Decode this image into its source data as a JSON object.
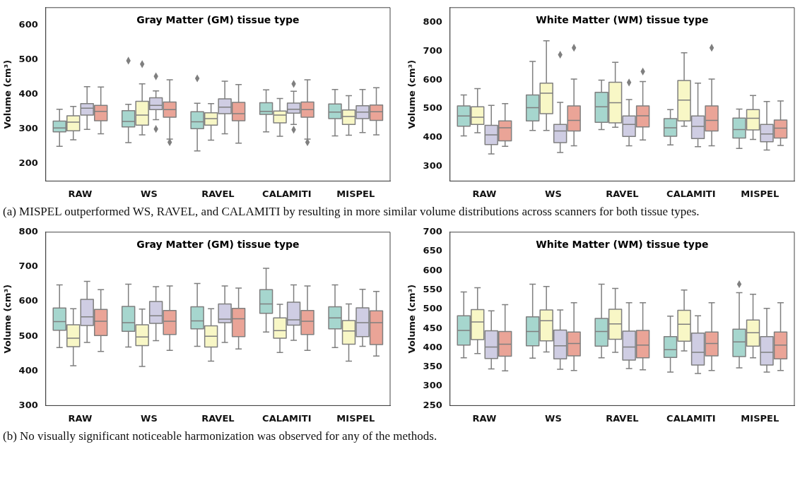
{
  "chart_data": [
    {
      "type": "box",
      "title": "Gray Matter (GM) tissue type",
      "ylabel": "Volume (cm³)",
      "categories": [
        "RAW",
        "WS",
        "RAVEL",
        "CALAMITI",
        "MISPEL"
      ],
      "ylim": [
        150,
        650
      ],
      "yticks": [
        200,
        300,
        400,
        500,
        600
      ],
      "marker": "diamond",
      "annotations": [
        "(a) MISPEL outperformed WS, RAVEL, and CALAMITI by resulting in more similar volume distributions across scanners for both tissue types."
      ],
      "series": [
        {
          "color": "#a6d6ce",
          "boxes": [
            {
              "low": 250,
              "q1": 292,
              "median": 303,
              "q3": 323,
              "high": 357
            },
            {
              "low": 261,
              "q1": 306,
              "median": 322,
              "q3": 353,
              "high": 371,
              "outliers": [
                497
              ]
            },
            {
              "low": 237,
              "q1": 301,
              "median": 321,
              "q3": 350,
              "high": 374,
              "outliers": [
                446
              ]
            },
            {
              "low": 292,
              "q1": 342,
              "median": 351,
              "q3": 376,
              "high": 413
            },
            {
              "low": 280,
              "q1": 330,
              "median": 349,
              "q3": 372,
              "high": 414
            }
          ]
        },
        {
          "color": "#f8f7c6",
          "boxes": [
            {
              "low": 269,
              "q1": 295,
              "median": 320,
              "q3": 338,
              "high": 365
            },
            {
              "low": 283,
              "q1": 311,
              "median": 340,
              "q3": 380,
              "high": 430,
              "outliers": [
                487
              ]
            },
            {
              "low": 268,
              "q1": 311,
              "median": 330,
              "q3": 347,
              "high": 373
            },
            {
              "low": 279,
              "q1": 318,
              "median": 340,
              "q3": 352,
              "high": 388
            },
            {
              "low": 282,
              "q1": 313,
              "median": 336,
              "q3": 355,
              "high": 396
            }
          ]
        },
        {
          "color": "#cfcde3",
          "boxes": [
            {
              "low": 299,
              "q1": 340,
              "median": 360,
              "q3": 373,
              "high": 422
            },
            {
              "low": 327,
              "q1": 356,
              "median": 368,
              "q3": 390,
              "high": 410,
              "outliers": [
                452,
                300
              ]
            },
            {
              "low": 286,
              "q1": 344,
              "median": 363,
              "q3": 387,
              "high": 438
            },
            {
              "low": 313,
              "q1": 346,
              "median": 357,
              "q3": 375,
              "high": 409,
              "outliers": [
                430,
                298
              ]
            },
            {
              "low": 290,
              "q1": 330,
              "median": 349,
              "q3": 367,
              "high": 414
            }
          ]
        },
        {
          "color": "#eaa497",
          "boxes": [
            {
              "low": 286,
              "q1": 324,
              "median": 351,
              "q3": 368,
              "high": 421
            },
            {
              "low": 271,
              "q1": 334,
              "median": 356,
              "q3": 378,
              "high": 442,
              "outliers": [
                262
              ]
            },
            {
              "low": 259,
              "q1": 324,
              "median": 344,
              "q3": 377,
              "high": 428
            },
            {
              "low": 271,
              "q1": 334,
              "median": 356,
              "q3": 378,
              "high": 442,
              "outliers": [
                262
              ]
            },
            {
              "low": 283,
              "q1": 325,
              "median": 350,
              "q3": 369,
              "high": 419
            }
          ]
        }
      ]
    },
    {
      "type": "box",
      "title": "White Matter (WM) tissue type",
      "ylabel": "Volume (cm³)",
      "categories": [
        "RAW",
        "WS",
        "RAVEL",
        "CALAMITI",
        "MISPEL"
      ],
      "ylim": [
        250,
        850
      ],
      "yticks": [
        300,
        400,
        500,
        600,
        700,
        800
      ],
      "marker": "diamond",
      "series": [
        {
          "color": "#a6d6ce",
          "boxes": [
            {
              "low": 406,
              "q1": 440,
              "median": 475,
              "q3": 510,
              "high": 548
            },
            {
              "low": 425,
              "q1": 458,
              "median": 504,
              "q3": 548,
              "high": 664
            },
            {
              "low": 428,
              "q1": 453,
              "median": 507,
              "q3": 557,
              "high": 599
            },
            {
              "low": 375,
              "q1": 405,
              "median": 434,
              "q3": 466,
              "high": 497
            },
            {
              "low": 363,
              "q1": 399,
              "median": 428,
              "q3": 468,
              "high": 499
            }
          ]
        },
        {
          "color": "#f8f7c6",
          "boxes": [
            {
              "low": 417,
              "q1": 446,
              "median": 471,
              "q3": 507,
              "high": 570
            },
            {
              "low": 425,
              "q1": 483,
              "median": 554,
              "q3": 589,
              "high": 735
            },
            {
              "low": 436,
              "q1": 451,
              "median": 521,
              "q3": 592,
              "high": 661
            },
            {
              "low": 440,
              "q1": 458,
              "median": 530,
              "q3": 598,
              "high": 694
            },
            {
              "low": 394,
              "q1": 427,
              "median": 467,
              "q3": 497,
              "high": 546
            }
          ]
        },
        {
          "color": "#cfcde3",
          "boxes": [
            {
              "low": 344,
              "q1": 376,
              "median": 410,
              "q3": 443,
              "high": 512
            },
            {
              "low": 349,
              "q1": 383,
              "median": 423,
              "q3": 446,
              "high": 522,
              "outliers": [
                687
              ]
            },
            {
              "low": 372,
              "q1": 404,
              "median": 446,
              "q3": 475,
              "high": 532,
              "outliers": [
                591
              ]
            },
            {
              "low": 369,
              "q1": 397,
              "median": 439,
              "q3": 475,
              "high": 589
            },
            {
              "low": 357,
              "q1": 386,
              "median": 413,
              "q3": 446,
              "high": 525
            }
          ]
        },
        {
          "color": "#eaa497",
          "boxes": [
            {
              "low": 370,
              "q1": 389,
              "median": 434,
              "q3": 458,
              "high": 518
            },
            {
              "low": 372,
              "q1": 423,
              "median": 460,
              "q3": 510,
              "high": 603,
              "outliers": [
                711
              ]
            },
            {
              "low": 392,
              "q1": 437,
              "median": 476,
              "q3": 510,
              "high": 594,
              "outliers": [
                629
              ]
            },
            {
              "low": 372,
              "q1": 423,
              "median": 460,
              "q3": 510,
              "high": 603,
              "outliers": [
                711
              ]
            },
            {
              "low": 373,
              "q1": 399,
              "median": 433,
              "q3": 461,
              "high": 527
            }
          ]
        }
      ]
    },
    {
      "type": "box",
      "title": "Gray Matter (GM) tissue type",
      "ylabel": "Volume (cm³)",
      "categories": [
        "RAW",
        "WS",
        "RAVEL",
        "CALAMITI",
        "MISPEL"
      ],
      "ylim": [
        300,
        800
      ],
      "yticks": [
        300,
        400,
        500,
        600,
        700,
        800
      ],
      "annotations": [
        "(b) No visually significant noticeable harmonization was observed for any of the methods."
      ],
      "series": [
        {
          "color": "#a6d6ce",
          "boxes": [
            {
              "low": 467,
              "q1": 517,
              "median": 542,
              "q3": 581,
              "high": 648
            },
            {
              "low": 469,
              "q1": 514,
              "median": 539,
              "q3": 586,
              "high": 650
            },
            {
              "low": 471,
              "q1": 521,
              "median": 544,
              "q3": 585,
              "high": 652
            },
            {
              "low": 512,
              "q1": 566,
              "median": 593,
              "q3": 634,
              "high": 696
            },
            {
              "low": 467,
              "q1": 521,
              "median": 553,
              "q3": 585,
              "high": 648
            }
          ]
        },
        {
          "color": "#f8f7c6",
          "boxes": [
            {
              "low": 415,
              "q1": 470,
              "median": 494,
              "q3": 533,
              "high": 579
            },
            {
              "low": 413,
              "q1": 473,
              "median": 498,
              "q3": 533,
              "high": 578
            },
            {
              "low": 428,
              "q1": 469,
              "median": 500,
              "q3": 530,
              "high": 579
            },
            {
              "low": 453,
              "q1": 494,
              "median": 516,
              "q3": 553,
              "high": 592
            },
            {
              "low": 428,
              "q1": 477,
              "median": 515,
              "q3": 545,
              "high": 593
            }
          ]
        },
        {
          "color": "#cfcde3",
          "boxes": [
            {
              "low": 482,
              "q1": 531,
              "median": 556,
              "q3": 606,
              "high": 658
            },
            {
              "low": 487,
              "q1": 537,
              "median": 559,
              "q3": 600,
              "high": 643
            },
            {
              "low": 482,
              "q1": 539,
              "median": 549,
              "q3": 593,
              "high": 645
            },
            {
              "low": 488,
              "q1": 532,
              "median": 547,
              "q3": 598,
              "high": 648
            },
            {
              "low": 471,
              "q1": 499,
              "median": 539,
              "q3": 582,
              "high": 635
            }
          ]
        },
        {
          "color": "#eaa497",
          "boxes": [
            {
              "low": 456,
              "q1": 502,
              "median": 543,
              "q3": 577,
              "high": 634
            },
            {
              "low": 459,
              "q1": 505,
              "median": 543,
              "q3": 574,
              "high": 645
            },
            {
              "low": 463,
              "q1": 499,
              "median": 550,
              "q3": 580,
              "high": 639
            },
            {
              "low": 459,
              "q1": 505,
              "median": 543,
              "q3": 574,
              "high": 645
            },
            {
              "low": 443,
              "q1": 476,
              "median": 539,
              "q3": 573,
              "high": 629
            }
          ]
        }
      ]
    },
    {
      "type": "box",
      "title": "White Matter (WM) tissue type",
      "ylabel": "Volume (cm³)",
      "categories": [
        "RAW",
        "WS",
        "RAVEL",
        "CALAMITI",
        "MISPEL"
      ],
      "ylim": [
        250,
        700
      ],
      "yticks": [
        250,
        300,
        350,
        400,
        450,
        500,
        550,
        600,
        650,
        700
      ],
      "marker": "diamond",
      "series": [
        {
          "color": "#a6d6ce",
          "boxes": [
            {
              "low": 374,
              "q1": 407,
              "median": 445,
              "q3": 483,
              "high": 545
            },
            {
              "low": 373,
              "q1": 405,
              "median": 442,
              "q3": 480,
              "high": 565
            },
            {
              "low": 374,
              "q1": 404,
              "median": 442,
              "q3": 476,
              "high": 565
            },
            {
              "low": 337,
              "q1": 375,
              "median": 395,
              "q3": 429,
              "high": 482
            },
            {
              "low": 348,
              "q1": 377,
              "median": 415,
              "q3": 448,
              "high": 543,
              "outliers": [
                565
              ]
            }
          ]
        },
        {
          "color": "#f8f7c6",
          "boxes": [
            {
              "low": 385,
              "q1": 421,
              "median": 467,
              "q3": 499,
              "high": 556
            },
            {
              "low": 389,
              "q1": 418,
              "median": 470,
              "q3": 498,
              "high": 559
            },
            {
              "low": 388,
              "q1": 422,
              "median": 462,
              "q3": 500,
              "high": 554
            },
            {
              "low": 392,
              "q1": 417,
              "median": 461,
              "q3": 497,
              "high": 550
            },
            {
              "low": 374,
              "q1": 404,
              "median": 439,
              "q3": 472,
              "high": 539
            }
          ]
        },
        {
          "color": "#cfcde3",
          "boxes": [
            {
              "low": 345,
              "q1": 372,
              "median": 402,
              "q3": 444,
              "high": 496
            },
            {
              "low": 344,
              "q1": 371,
              "median": 405,
              "q3": 446,
              "high": 498
            },
            {
              "low": 346,
              "q1": 368,
              "median": 402,
              "q3": 443,
              "high": 517
            },
            {
              "low": 333,
              "q1": 355,
              "median": 388,
              "q3": 438,
              "high": 483
            },
            {
              "low": 337,
              "q1": 355,
              "median": 388,
              "q3": 429,
              "high": 502
            }
          ]
        },
        {
          "color": "#eaa497",
          "boxes": [
            {
              "low": 340,
              "q1": 378,
              "median": 409,
              "q3": 442,
              "high": 512
            },
            {
              "low": 341,
              "q1": 379,
              "median": 411,
              "q3": 441,
              "high": 517
            },
            {
              "low": 343,
              "q1": 374,
              "median": 407,
              "q3": 445,
              "high": 517
            },
            {
              "low": 341,
              "q1": 379,
              "median": 411,
              "q3": 441,
              "high": 517
            },
            {
              "low": 341,
              "q1": 371,
              "median": 407,
              "q3": 441,
              "high": 517
            }
          ]
        }
      ]
    }
  ]
}
